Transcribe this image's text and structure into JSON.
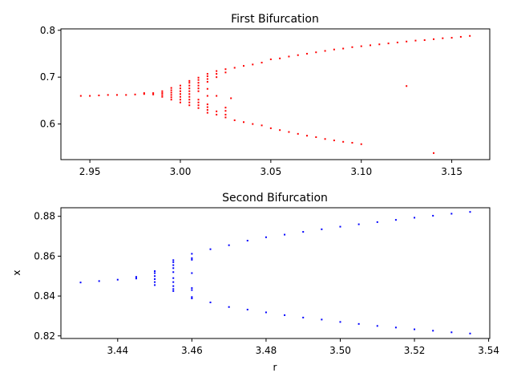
{
  "chart_data": [
    {
      "type": "scatter",
      "title": "First Bifurcation",
      "xlabel": "",
      "ylabel": "",
      "xlim": [
        2.934,
        3.171
      ],
      "ylim": [
        0.524,
        0.803
      ],
      "xticks": [
        2.95,
        3.0,
        3.05,
        3.1,
        3.15
      ],
      "xtick_labels": [
        "2.95",
        "3.00",
        "3.05",
        "3.10",
        "3.15"
      ],
      "yticks": [
        0.6,
        0.7,
        0.8
      ],
      "ytick_labels": [
        "0.6",
        "0.7",
        "0.8"
      ],
      "grid": false,
      "color": "#ff0000",
      "points": [
        [
          2.945,
          0.66
        ],
        [
          2.95,
          0.66
        ],
        [
          2.955,
          0.661
        ],
        [
          2.96,
          0.662
        ],
        [
          2.965,
          0.662
        ],
        [
          2.97,
          0.662
        ],
        [
          2.975,
          0.663
        ],
        [
          2.98,
          0.664
        ],
        [
          2.98,
          0.666
        ],
        [
          2.985,
          0.663
        ],
        [
          2.985,
          0.666
        ],
        [
          2.99,
          0.658
        ],
        [
          2.99,
          0.662
        ],
        [
          2.99,
          0.666
        ],
        [
          2.99,
          0.67
        ],
        [
          2.995,
          0.652
        ],
        [
          2.995,
          0.657
        ],
        [
          2.995,
          0.662
        ],
        [
          2.995,
          0.667
        ],
        [
          2.995,
          0.672
        ],
        [
          2.995,
          0.677
        ],
        [
          3.0,
          0.646
        ],
        [
          3.0,
          0.652
        ],
        [
          3.0,
          0.658
        ],
        [
          3.0,
          0.664
        ],
        [
          3.0,
          0.67
        ],
        [
          3.0,
          0.676
        ],
        [
          3.0,
          0.682
        ],
        [
          3.005,
          0.64
        ],
        [
          3.005,
          0.646
        ],
        [
          3.005,
          0.652
        ],
        [
          3.005,
          0.658
        ],
        [
          3.005,
          0.664
        ],
        [
          3.005,
          0.67
        ],
        [
          3.005,
          0.676
        ],
        [
          3.005,
          0.682
        ],
        [
          3.005,
          0.688
        ],
        [
          3.005,
          0.692
        ],
        [
          3.01,
          0.634
        ],
        [
          3.01,
          0.64
        ],
        [
          3.01,
          0.646
        ],
        [
          3.01,
          0.652
        ],
        [
          3.01,
          0.67
        ],
        [
          3.01,
          0.676
        ],
        [
          3.01,
          0.682
        ],
        [
          3.01,
          0.688
        ],
        [
          3.01,
          0.694
        ],
        [
          3.01,
          0.699
        ],
        [
          3.015,
          0.624
        ],
        [
          3.015,
          0.63
        ],
        [
          3.015,
          0.636
        ],
        [
          3.015,
          0.642
        ],
        [
          3.015,
          0.66
        ],
        [
          3.015,
          0.675
        ],
        [
          3.015,
          0.69
        ],
        [
          3.015,
          0.696
        ],
        [
          3.015,
          0.702
        ],
        [
          3.015,
          0.707
        ],
        [
          3.02,
          0.62
        ],
        [
          3.02,
          0.627
        ],
        [
          3.02,
          0.66
        ],
        [
          3.02,
          0.7
        ],
        [
          3.02,
          0.707
        ],
        [
          3.02,
          0.713
        ],
        [
          3.025,
          0.614
        ],
        [
          3.025,
          0.62
        ],
        [
          3.025,
          0.628
        ],
        [
          3.025,
          0.635
        ],
        [
          3.025,
          0.71
        ],
        [
          3.025,
          0.717
        ],
        [
          3.028,
          0.655
        ],
        [
          3.03,
          0.608
        ],
        [
          3.03,
          0.72
        ],
        [
          3.035,
          0.604
        ],
        [
          3.035,
          0.724
        ],
        [
          3.04,
          0.6
        ],
        [
          3.04,
          0.727
        ],
        [
          3.045,
          0.597
        ],
        [
          3.045,
          0.731
        ],
        [
          3.05,
          0.591
        ],
        [
          3.05,
          0.738
        ],
        [
          3.055,
          0.587
        ],
        [
          3.055,
          0.74
        ],
        [
          3.06,
          0.583
        ],
        [
          3.06,
          0.744
        ],
        [
          3.065,
          0.579
        ],
        [
          3.065,
          0.747
        ],
        [
          3.07,
          0.575
        ],
        [
          3.07,
          0.75
        ],
        [
          3.075,
          0.572
        ],
        [
          3.075,
          0.753
        ],
        [
          3.08,
          0.568
        ],
        [
          3.08,
          0.756
        ],
        [
          3.085,
          0.565
        ],
        [
          3.085,
          0.759
        ],
        [
          3.09,
          0.562
        ],
        [
          3.09,
          0.761
        ],
        [
          3.095,
          0.56
        ],
        [
          3.095,
          0.764
        ],
        [
          3.1,
          0.557
        ],
        [
          3.1,
          0.766
        ],
        [
          3.105,
          0.768
        ],
        [
          3.11,
          0.77
        ],
        [
          3.115,
          0.772
        ],
        [
          3.12,
          0.774
        ],
        [
          3.125,
          0.681
        ],
        [
          3.125,
          0.776
        ],
        [
          3.13,
          0.778
        ],
        [
          3.135,
          0.779
        ],
        [
          3.14,
          0.538
        ],
        [
          3.14,
          0.781
        ],
        [
          3.145,
          0.783
        ],
        [
          3.15,
          0.784
        ],
        [
          3.155,
          0.786
        ],
        [
          3.16,
          0.788
        ]
      ]
    },
    {
      "type": "scatter",
      "title": "Second Bifurcation",
      "xlabel": "r",
      "ylabel": "x",
      "xlim": [
        3.4247,
        3.5403
      ],
      "ylim": [
        0.8187,
        0.8843
      ],
      "xticks": [
        3.44,
        3.46,
        3.48,
        3.5,
        3.52,
        3.54
      ],
      "xtick_labels": [
        "3.44",
        "3.46",
        "3.48",
        "3.50",
        "3.52",
        "3.54"
      ],
      "yticks": [
        0.82,
        0.84,
        0.86,
        0.88
      ],
      "ytick_labels": [
        "0.82",
        "0.84",
        "0.86",
        "0.88"
      ],
      "grid": false,
      "color": "#0000ff",
      "points": [
        [
          3.43,
          0.8468
        ],
        [
          3.435,
          0.8475
        ],
        [
          3.44,
          0.8482
        ],
        [
          3.445,
          0.8488
        ],
        [
          3.445,
          0.8496
        ],
        [
          3.45,
          0.8455
        ],
        [
          3.45,
          0.847
        ],
        [
          3.45,
          0.8485
        ],
        [
          3.45,
          0.85
        ],
        [
          3.45,
          0.8515
        ],
        [
          3.45,
          0.8525
        ],
        [
          3.455,
          0.8425
        ],
        [
          3.455,
          0.8435
        ],
        [
          3.455,
          0.845
        ],
        [
          3.455,
          0.847
        ],
        [
          3.455,
          0.849
        ],
        [
          3.455,
          0.852
        ],
        [
          3.455,
          0.854
        ],
        [
          3.455,
          0.8555
        ],
        [
          3.455,
          0.857
        ],
        [
          3.455,
          0.858
        ],
        [
          3.46,
          0.8388
        ],
        [
          3.46,
          0.8395
        ],
        [
          3.46,
          0.843
        ],
        [
          3.46,
          0.844
        ],
        [
          3.46,
          0.8515
        ],
        [
          3.46,
          0.8582
        ],
        [
          3.46,
          0.859
        ],
        [
          3.46,
          0.8612
        ],
        [
          3.465,
          0.8368
        ],
        [
          3.465,
          0.8635
        ],
        [
          3.47,
          0.8345
        ],
        [
          3.47,
          0.8655
        ],
        [
          3.475,
          0.8332
        ],
        [
          3.475,
          0.8678
        ],
        [
          3.48,
          0.8318
        ],
        [
          3.48,
          0.8695
        ],
        [
          3.485,
          0.8304
        ],
        [
          3.485,
          0.8708
        ],
        [
          3.49,
          0.8292
        ],
        [
          3.49,
          0.8722
        ],
        [
          3.495,
          0.8282
        ],
        [
          3.495,
          0.8735
        ],
        [
          3.5,
          0.827
        ],
        [
          3.5,
          0.8748
        ],
        [
          3.505,
          0.826
        ],
        [
          3.505,
          0.876
        ],
        [
          3.51,
          0.825
        ],
        [
          3.51,
          0.8771
        ],
        [
          3.515,
          0.8242
        ],
        [
          3.515,
          0.8782
        ],
        [
          3.52,
          0.8233
        ],
        [
          3.52,
          0.8793
        ],
        [
          3.525,
          0.8226
        ],
        [
          3.525,
          0.8803
        ],
        [
          3.53,
          0.8218
        ],
        [
          3.53,
          0.8813
        ],
        [
          3.535,
          0.8212
        ],
        [
          3.535,
          0.8822
        ]
      ]
    }
  ]
}
